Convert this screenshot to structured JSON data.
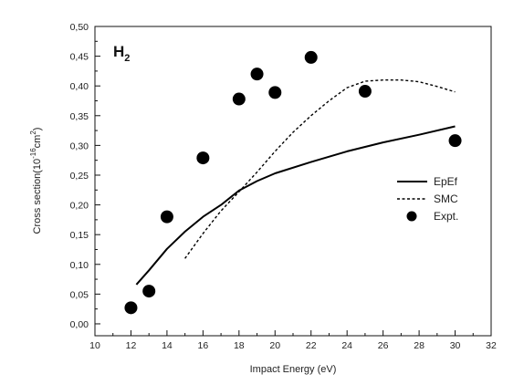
{
  "chart_data": {
    "type": "line",
    "annotation": {
      "main": "H",
      "sub": "2"
    },
    "xlabel": "Impact Energy (eV)",
    "ylabel": {
      "before": "Cross section(10",
      "sup1": "-16",
      "mid": "cm",
      "sup2": "2",
      "after": ")"
    },
    "xlim": [
      10,
      32
    ],
    "ylim": [
      -0.02,
      0.5
    ],
    "x_ticks": [
      10,
      12,
      14,
      16,
      18,
      20,
      22,
      24,
      26,
      28,
      30,
      32
    ],
    "y_ticks": [
      "0,00",
      "0,05",
      "0,10",
      "0,15",
      "0,20",
      "0,25",
      "0,30",
      "0,35",
      "0,40",
      "0,45",
      "0,50"
    ],
    "y_tick_values": [
      0,
      0.05,
      0.1,
      0.15,
      0.2,
      0.25,
      0.3,
      0.35,
      0.4,
      0.45,
      0.5
    ],
    "legend_position": "right",
    "series": [
      {
        "name": "EpEf",
        "style": "solid",
        "x": [
          12.3,
          13,
          14,
          15,
          16,
          17,
          18,
          19,
          20,
          22,
          24,
          26,
          28,
          30
        ],
        "y": [
          0.066,
          0.09,
          0.126,
          0.155,
          0.18,
          0.2,
          0.224,
          0.24,
          0.253,
          0.272,
          0.29,
          0.305,
          0.318,
          0.332
        ]
      },
      {
        "name": "SMC",
        "style": "dashed",
        "x": [
          15,
          16,
          17,
          18,
          19,
          20,
          21,
          22,
          23,
          24,
          25,
          26,
          27,
          28,
          29,
          30
        ],
        "y": [
          0.11,
          0.152,
          0.19,
          0.222,
          0.255,
          0.29,
          0.322,
          0.35,
          0.375,
          0.397,
          0.408,
          0.41,
          0.41,
          0.407,
          0.399,
          0.39
        ]
      },
      {
        "name": "Expt.",
        "style": "points",
        "x": [
          12,
          13,
          14,
          16,
          18,
          19,
          20,
          22,
          25,
          30
        ],
        "y": [
          0.027,
          0.055,
          0.18,
          0.279,
          0.378,
          0.42,
          0.389,
          0.448,
          0.391,
          0.308
        ]
      }
    ]
  },
  "colors": {
    "line": "#000000",
    "marker": "#000000",
    "frame": "#111111"
  }
}
